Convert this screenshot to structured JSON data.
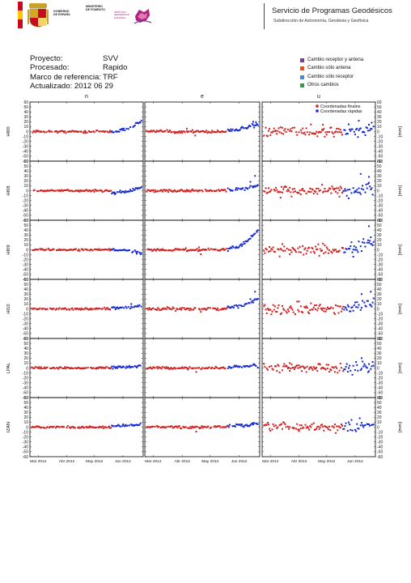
{
  "header": {
    "ministry_lines": [
      "GOBIERNO",
      "DE ESPAÑA"
    ],
    "ministry2_lines": [
      "MINISTERIO",
      "DE FOMENTO"
    ],
    "ign_lines": [
      "INSTITUTO",
      "GEOGRÁFICO",
      "NACIONAL"
    ],
    "service": "Servicio de Programas Geodésicos",
    "subdirection": "Subdirección de Astronomía, Geodesia y Geofísica"
  },
  "info": {
    "proyecto_label": "Proyecto:",
    "proyecto_value": "SVV",
    "procesado_label": "Procesado:",
    "procesado_value": "Rapido",
    "marco_label": "Marco de referencia:",
    "marco_value": "TRF",
    "actualizado": "Actualizado: 2012 06 29"
  },
  "event_legend": [
    {
      "label": "Cambio receptor y antena",
      "color": "#7b3a96"
    },
    {
      "label": "Cambio sólo antena",
      "color": "#e0561a"
    },
    {
      "label": "Cambio sólo receptor",
      "color": "#3a8fd6"
    },
    {
      "label": "Otros cambios",
      "color": "#27a13a"
    }
  ],
  "chart_data": {
    "type": "scatter",
    "columns": [
      "n",
      "e",
      "u"
    ],
    "rows": [
      "HI00",
      "HI08",
      "HI09",
      "HI10",
      "LPAL",
      "IZAN"
    ],
    "ylabel_right": "[mm]",
    "ylim": [
      -60,
      60
    ],
    "yticks": [
      60,
      50,
      40,
      30,
      20,
      10,
      0,
      -10,
      -20,
      -30,
      -40,
      -50,
      -60
    ],
    "x_domain_days": [
      0,
      123
    ],
    "xticks": [
      {
        "label": "Mar 2012",
        "day": 9
      },
      {
        "label": "Abr 2012",
        "day": 40
      },
      {
        "label": "May 2012",
        "day": 70
      },
      {
        "label": "Jun 2012",
        "day": 101
      }
    ],
    "legend": [
      {
        "label": "Coordenadas finales",
        "color": "#d11f1f"
      },
      {
        "label": "Coordenadas rápidas",
        "color": "#1226d4"
      }
    ],
    "series_colors": {
      "final": "#d11f1f",
      "rapid": "#1226d4"
    },
    "final_end_day": 88,
    "panels": {
      "HI00": {
        "n": {
          "noise": 1.2,
          "rapid_trend": [
            0,
            22
          ],
          "outliers": [
            [
              60,
              -3
            ]
          ]
        },
        "e": {
          "noise": 1.6,
          "rapid_trend": [
            3,
            15
          ],
          "outliers": [
            [
              45,
              6
            ],
            [
              54,
              -8
            ],
            [
              116,
              20
            ],
            [
              119,
              13
            ]
          ]
        },
        "u": {
          "noise": 5.5,
          "rapid_trend": [
            0,
            5
          ],
          "outliers": [
            [
              66,
              14
            ],
            [
              105,
              22
            ],
            [
              119,
              18
            ]
          ]
        }
      },
      "HI08": {
        "n": {
          "noise": 1.0,
          "rapid_trend": [
            -4,
            6
          ],
          "outliers": [
            [
              92,
              -7
            ]
          ]
        },
        "e": {
          "noise": 1.3,
          "rapid_trend": [
            2,
            10
          ],
          "outliers": [
            [
              113,
              18
            ],
            [
              118,
              30
            ]
          ]
        },
        "u": {
          "noise": 5.0,
          "rapid_trend": [
            0,
            4
          ],
          "outliers": [
            [
              107,
              34
            ],
            [
              116,
              28
            ],
            [
              84,
              -12
            ],
            [
              20,
              -14
            ]
          ]
        }
      },
      "HI09": {
        "n": {
          "noise": 1.0,
          "rapid_trend": [
            0,
            -6
          ],
          "outliers": [
            [
              116,
              -8
            ]
          ]
        },
        "e": {
          "noise": 1.4,
          "rapid_trend": [
            2,
            40
          ],
          "outliers": [
            [
              58,
              5
            ],
            [
              60,
              -9
            ],
            [
              120,
              36
            ]
          ]
        },
        "u": {
          "noise": 5.0,
          "rapid_trend": [
            0,
            20
          ],
          "outliers": [
            [
              99,
              -14
            ],
            [
              116,
              48
            ],
            [
              118,
              12
            ]
          ]
        }
      },
      "HI10": {
        "n": {
          "noise": 1.0,
          "rapid_trend": [
            2,
            6
          ],
          "outliers": [
            [
              110,
              10
            ]
          ]
        },
        "e": {
          "noise": 1.5,
          "rapid_trend": [
            4,
            20
          ],
          "outliers": [
            [
              113,
              20
            ],
            [
              118,
              35
            ],
            [
              60,
              -6
            ]
          ]
        },
        "u": {
          "noise": 5.0,
          "rapid_trend": [
            4,
            14
          ],
          "outliers": [
            [
              108,
              30
            ],
            [
              118,
              35
            ],
            [
              40,
              15
            ]
          ]
        }
      },
      "LPAL": {
        "n": {
          "noise": 1.0,
          "rapid_trend": [
            2,
            5
          ],
          "outliers": []
        },
        "e": {
          "noise": 1.3,
          "rapid_trend": [
            2,
            5
          ],
          "outliers": [
            [
              55,
              -8
            ],
            [
              116,
              7
            ]
          ]
        },
        "u": {
          "noise": 4.5,
          "rapid_trend": [
            0,
            4
          ],
          "outliers": [
            [
              108,
              20
            ],
            [
              116,
              8
            ],
            [
              30,
              10
            ]
          ]
        }
      },
      "IZAN": {
        "n": {
          "noise": 1.0,
          "rapid_trend": [
            2,
            5
          ],
          "outliers": []
        },
        "e": {
          "noise": 1.3,
          "rapid_trend": [
            3,
            6
          ],
          "outliers": [
            [
              55,
              -9
            ],
            [
              116,
              8
            ]
          ]
        },
        "u": {
          "noise": 4.0,
          "rapid_trend": [
            0,
            4
          ],
          "outliers": [
            [
              106,
              18
            ],
            [
              80,
              -12
            ],
            [
              40,
              -8
            ]
          ]
        }
      }
    }
  }
}
